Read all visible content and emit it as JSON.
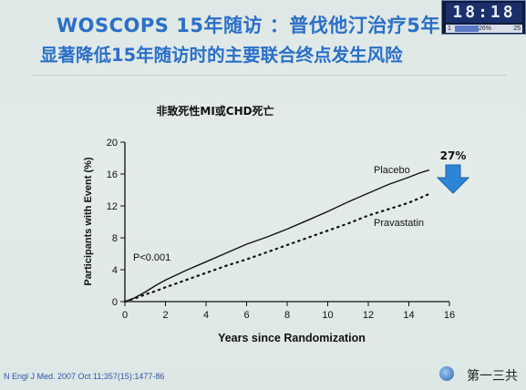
{
  "slide": {
    "title_line1": "WOSCOPS 15年随访 ：普伐他汀治疗5年",
    "title_line2": "显著降低15年随访时的主要联合终点发生风险",
    "citation": "N Engl J Med. 2007 Oct 11;357(15):1477-86",
    "footer_text": "第一三共"
  },
  "widget": {
    "digits": "18:18",
    "bar_left": "1",
    "bar_mid": "26%",
    "bar_right": "25"
  },
  "colors": {
    "title": "#2a6fc9",
    "arrow": "#2b86d8",
    "line": "#111111"
  },
  "chart_data": {
    "type": "line",
    "title": "非致死性MI或CHD死亡",
    "xlabel": "Years since Randomization",
    "ylabel": "Participants with Event (%)",
    "xlim": [
      0,
      16
    ],
    "ylim": [
      0,
      20
    ],
    "xticks": [
      0,
      2,
      4,
      6,
      8,
      10,
      12,
      14,
      16
    ],
    "yticks": [
      0,
      4,
      8,
      12,
      16,
      20
    ],
    "series": [
      {
        "name": "Placebo",
        "style": "solid",
        "x": [
          0,
          0.5,
          1,
          1.5,
          2,
          3,
          4,
          5,
          6,
          7,
          8,
          9,
          10,
          11,
          12,
          13,
          14,
          14.5,
          15
        ],
        "y": [
          0,
          0.5,
          1.2,
          2.0,
          2.7,
          3.9,
          5.0,
          6.1,
          7.2,
          8.1,
          9.1,
          10.2,
          11.3,
          12.5,
          13.6,
          14.7,
          15.6,
          16.1,
          16.5
        ]
      },
      {
        "name": "Pravastatin",
        "style": "dotted",
        "x": [
          0,
          0.5,
          1,
          1.5,
          2,
          3,
          4,
          5,
          6,
          7,
          8,
          9,
          10,
          11,
          12,
          13,
          14,
          15
        ],
        "y": [
          0,
          0.4,
          0.9,
          1.3,
          1.8,
          2.7,
          3.6,
          4.5,
          5.3,
          6.2,
          7.1,
          8.0,
          8.9,
          9.8,
          10.8,
          11.6,
          12.4,
          13.5
        ]
      }
    ],
    "annotations": {
      "pvalue": "P<0.001",
      "reduction": "27%"
    }
  }
}
